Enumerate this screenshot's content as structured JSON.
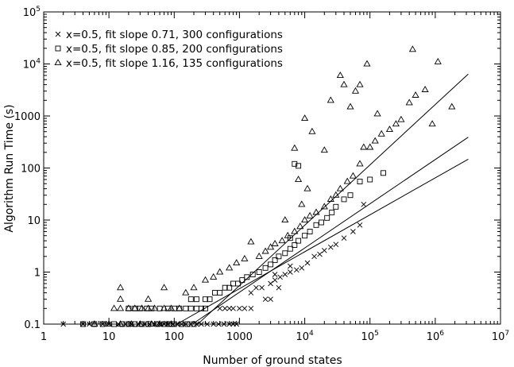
{
  "chart_data": {
    "type": "scatter",
    "xscale": "log",
    "yscale": "log",
    "xlabel": "Number of ground states",
    "ylabel": "Algorithm Run Time (s)",
    "xlim": [
      1,
      10000000
    ],
    "ylim": [
      0.1,
      100000
    ],
    "grid": false,
    "legend_position": "top-left",
    "x_ticks": [
      {
        "base": "1",
        "exp": ""
      },
      {
        "base": "10",
        "exp": ""
      },
      {
        "base": "100",
        "exp": ""
      },
      {
        "base": "1000",
        "exp": ""
      },
      {
        "base": "10",
        "exp": "4"
      },
      {
        "base": "10",
        "exp": "5"
      },
      {
        "base": "10",
        "exp": "6"
      },
      {
        "base": "10",
        "exp": "7"
      }
    ],
    "y_ticks": [
      {
        "base": "0.1",
        "exp": ""
      },
      {
        "base": "1",
        "exp": ""
      },
      {
        "base": "10",
        "exp": ""
      },
      {
        "base": "100",
        "exp": ""
      },
      {
        "base": "1000",
        "exp": ""
      },
      {
        "base": "10",
        "exp": "4"
      },
      {
        "base": "10",
        "exp": "5"
      }
    ],
    "series": [
      {
        "name": "x=0.5, fit slope 0.71, 300 configurations",
        "marker": "x",
        "fit": {
          "slope": 0.71,
          "x_start": 110,
          "y_start": 0.1,
          "x_end": 3200000
        },
        "points": [
          [
            2,
            0.1
          ],
          [
            4,
            0.1
          ],
          [
            5,
            0.1
          ],
          [
            8,
            0.1
          ],
          [
            10,
            0.1
          ],
          [
            14,
            0.1
          ],
          [
            18,
            0.1
          ],
          [
            22,
            0.1
          ],
          [
            28,
            0.1
          ],
          [
            35,
            0.1
          ],
          [
            42,
            0.1
          ],
          [
            50,
            0.1
          ],
          [
            60,
            0.1
          ],
          [
            70,
            0.1
          ],
          [
            80,
            0.1
          ],
          [
            95,
            0.1
          ],
          [
            110,
            0.1
          ],
          [
            130,
            0.1
          ],
          [
            150,
            0.1
          ],
          [
            180,
            0.1
          ],
          [
            220,
            0.1
          ],
          [
            260,
            0.1
          ],
          [
            320,
            0.1
          ],
          [
            400,
            0.1
          ],
          [
            480,
            0.1
          ],
          [
            580,
            0.1
          ],
          [
            700,
            0.1
          ],
          [
            800,
            0.1
          ],
          [
            900,
            0.1
          ],
          [
            500,
            0.2
          ],
          [
            600,
            0.2
          ],
          [
            700,
            0.2
          ],
          [
            800,
            0.2
          ],
          [
            1000,
            0.2
          ],
          [
            1200,
            0.2
          ],
          [
            1500,
            0.2
          ],
          [
            2500,
            0.3
          ],
          [
            3000,
            0.3
          ],
          [
            1500,
            0.4
          ],
          [
            1800,
            0.5
          ],
          [
            2200,
            0.5
          ],
          [
            3000,
            0.6
          ],
          [
            3500,
            0.7
          ],
          [
            4200,
            0.8
          ],
          [
            5000,
            0.9
          ],
          [
            6000,
            1.0
          ],
          [
            7500,
            1.1
          ],
          [
            9000,
            1.2
          ],
          [
            11000,
            1.5
          ],
          [
            14000,
            2.0
          ],
          [
            17000,
            2.2
          ],
          [
            20000,
            2.6
          ],
          [
            25000,
            3.0
          ],
          [
            30000,
            3.4
          ],
          [
            40000,
            4.5
          ],
          [
            55000,
            6.0
          ],
          [
            70000,
            8.0
          ],
          [
            80000,
            20
          ],
          [
            6000,
            1.3
          ],
          [
            3500,
            0.9
          ],
          [
            4000,
            0.5
          ]
        ]
      },
      {
        "name": "x=0.5, fit slope 0.85, 200 configurations",
        "marker": "square",
        "fit": {
          "slope": 0.85,
          "x_start": 190,
          "y_start": 0.1,
          "x_end": 3200000
        },
        "points": [
          [
            4,
            0.1
          ],
          [
            6,
            0.1
          ],
          [
            8,
            0.1
          ],
          [
            12,
            0.1
          ],
          [
            16,
            0.1
          ],
          [
            20,
            0.1
          ],
          [
            25,
            0.1
          ],
          [
            32,
            0.1
          ],
          [
            40,
            0.1
          ],
          [
            55,
            0.1
          ],
          [
            70,
            0.1
          ],
          [
            85,
            0.1
          ],
          [
            100,
            0.1
          ],
          [
            130,
            0.1
          ],
          [
            160,
            0.1
          ],
          [
            200,
            0.1
          ],
          [
            20,
            0.2
          ],
          [
            25,
            0.2
          ],
          [
            30,
            0.2
          ],
          [
            38,
            0.2
          ],
          [
            45,
            0.2
          ],
          [
            60,
            0.2
          ],
          [
            80,
            0.2
          ],
          [
            100,
            0.2
          ],
          [
            120,
            0.2
          ],
          [
            150,
            0.2
          ],
          [
            180,
            0.2
          ],
          [
            220,
            0.2
          ],
          [
            260,
            0.2
          ],
          [
            300,
            0.2
          ],
          [
            180,
            0.3
          ],
          [
            220,
            0.3
          ],
          [
            300,
            0.3
          ],
          [
            350,
            0.3
          ],
          [
            420,
            0.4
          ],
          [
            500,
            0.4
          ],
          [
            600,
            0.5
          ],
          [
            700,
            0.5
          ],
          [
            800,
            0.6
          ],
          [
            950,
            0.6
          ],
          [
            1100,
            0.7
          ],
          [
            1300,
            0.8
          ],
          [
            1600,
            0.9
          ],
          [
            2000,
            1.0
          ],
          [
            2500,
            1.2
          ],
          [
            3000,
            1.4
          ],
          [
            3500,
            1.7
          ],
          [
            4000,
            2.0
          ],
          [
            5000,
            2.3
          ],
          [
            6000,
            2.8
          ],
          [
            7000,
            3.3
          ],
          [
            8000,
            4.0
          ],
          [
            10000,
            5.0
          ],
          [
            12000,
            6.0
          ],
          [
            15000,
            8.0
          ],
          [
            18000,
            9.0
          ],
          [
            22000,
            11
          ],
          [
            26000,
            14
          ],
          [
            30000,
            18
          ],
          [
            40000,
            25
          ],
          [
            50000,
            30
          ],
          [
            70000,
            55
          ],
          [
            100000,
            60
          ],
          [
            160000,
            80
          ],
          [
            8000,
            110
          ],
          [
            7000,
            120
          ],
          [
            6000,
            4.5
          ]
        ]
      },
      {
        "name": "x=0.5, fit slope 1.16, 135 configurations",
        "marker": "triangle",
        "fit": {
          "slope": 1.16,
          "x_start": 230,
          "y_start": 0.1,
          "x_end": 3200000
        },
        "points": [
          [
            6,
            0.1
          ],
          [
            10,
            0.1
          ],
          [
            15,
            0.1
          ],
          [
            22,
            0.1
          ],
          [
            30,
            0.1
          ],
          [
            45,
            0.1
          ],
          [
            60,
            0.1
          ],
          [
            90,
            0.1
          ],
          [
            12,
            0.2
          ],
          [
            15,
            0.2
          ],
          [
            20,
            0.2
          ],
          [
            25,
            0.2
          ],
          [
            32,
            0.2
          ],
          [
            40,
            0.2
          ],
          [
            50,
            0.2
          ],
          [
            70,
            0.2
          ],
          [
            90,
            0.2
          ],
          [
            120,
            0.2
          ],
          [
            15,
            0.5
          ],
          [
            15,
            0.3
          ],
          [
            40,
            0.3
          ],
          [
            70,
            0.5
          ],
          [
            150,
            0.4
          ],
          [
            200,
            0.5
          ],
          [
            300,
            0.7
          ],
          [
            400,
            0.8
          ],
          [
            500,
            1.0
          ],
          [
            700,
            1.2
          ],
          [
            900,
            1.5
          ],
          [
            1200,
            1.8
          ],
          [
            1500,
            3.8
          ],
          [
            2000,
            2.0
          ],
          [
            2500,
            2.5
          ],
          [
            3000,
            3.0
          ],
          [
            3500,
            3.5
          ],
          [
            4500,
            4.0
          ],
          [
            5500,
            5.0
          ],
          [
            7000,
            6.0
          ],
          [
            8500,
            7.5
          ],
          [
            10000,
            10
          ],
          [
            12000,
            12
          ],
          [
            15000,
            14
          ],
          [
            20000,
            18
          ],
          [
            25000,
            25
          ],
          [
            30000,
            30
          ],
          [
            35000,
            40
          ],
          [
            45000,
            55
          ],
          [
            55000,
            70
          ],
          [
            70000,
            120
          ],
          [
            80000,
            250
          ],
          [
            100000,
            250
          ],
          [
            120000,
            330
          ],
          [
            150000,
            450
          ],
          [
            200000,
            550
          ],
          [
            250000,
            700
          ],
          [
            300000,
            850
          ],
          [
            400000,
            1800
          ],
          [
            500000,
            2500
          ],
          [
            700000,
            3200
          ],
          [
            900000,
            700
          ],
          [
            1100000,
            11000
          ],
          [
            1800000,
            1500
          ],
          [
            450000,
            19000
          ],
          [
            130000,
            1100
          ],
          [
            25000,
            2000
          ],
          [
            40000,
            4000
          ],
          [
            70000,
            4000
          ],
          [
            50000,
            1500
          ],
          [
            10000,
            900
          ],
          [
            5000,
            10
          ],
          [
            7000,
            240
          ],
          [
            8000,
            60
          ],
          [
            9000,
            20
          ],
          [
            11000,
            40
          ],
          [
            13000,
            500
          ],
          [
            20000,
            220
          ],
          [
            35000,
            6000
          ],
          [
            60000,
            3000
          ],
          [
            90000,
            10000
          ]
        ]
      }
    ]
  }
}
